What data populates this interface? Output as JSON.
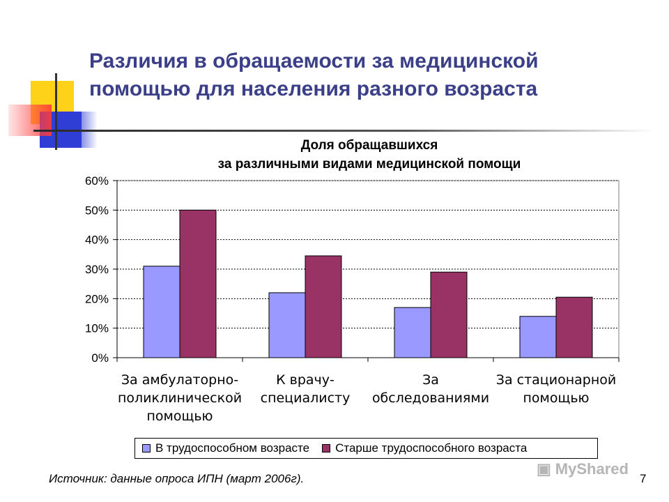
{
  "slide": {
    "title_line1": "Различия в обращаемости за медицинской",
    "title_line2": "помощью для населения разного возраста",
    "source": "Источник: данные опроса ИПН (март 2006г).",
    "page_number": "7",
    "watermark": "MyShared"
  },
  "chart_data": {
    "type": "bar",
    "title_line1": "Доля обращавшихся",
    "title_line2": "за различными видами медицинской помощи",
    "categories": [
      [
        "За амбулаторно-",
        "поликлинической",
        "помощью"
      ],
      [
        "К врачу-",
        "специалисту"
      ],
      [
        "За",
        "обследованиями"
      ],
      [
        "За стационарной",
        "помощью"
      ]
    ],
    "series": [
      {
        "name": "В трудоспособном возрасте",
        "color": "#9999ff",
        "values": [
          31,
          22,
          17,
          14
        ]
      },
      {
        "name": "Старше трудоспособного возраста",
        "color": "#993366",
        "values": [
          50,
          34.5,
          29,
          20.5
        ]
      }
    ],
    "ylim": [
      0,
      60
    ],
    "yticks": [
      0,
      10,
      20,
      30,
      40,
      50,
      60
    ],
    "ytick_labels": [
      "0%",
      "10%",
      "20%",
      "30%",
      "40%",
      "50%",
      "60%"
    ],
    "grid": true,
    "legend_position": "bottom"
  }
}
